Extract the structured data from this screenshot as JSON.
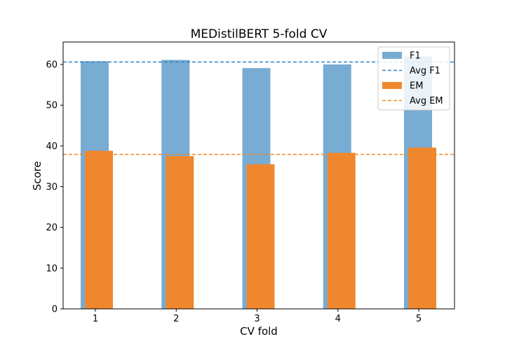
{
  "chart_data": {
    "type": "bar",
    "title": "MEDistilBERT 5-fold CV",
    "xlabel": "CV fold",
    "ylabel": "Score",
    "categories": [
      "1",
      "2",
      "3",
      "4",
      "5"
    ],
    "ylim": [
      0,
      65.5
    ],
    "yticks": [
      0,
      10,
      20,
      30,
      40,
      50,
      60
    ],
    "grid": false,
    "legend_position": "top-right",
    "series": [
      {
        "name": "F1",
        "color": "#78acd3",
        "values": [
          60.8,
          61.1,
          59.1,
          60.0,
          62.0
        ]
      },
      {
        "name": "EM",
        "color": "#ef872e",
        "values": [
          38.8,
          37.5,
          35.5,
          38.3,
          39.6
        ]
      }
    ],
    "reference_lines": [
      {
        "name": "Avg F1",
        "value": 60.6,
        "color": "#2f86c4"
      },
      {
        "name": "Avg EM",
        "value": 37.9,
        "color": "#f28a22"
      }
    ],
    "legend": [
      {
        "label": "F1",
        "kind": "patch",
        "color": "#78acd3"
      },
      {
        "label": "Avg F1",
        "kind": "dashed-line",
        "color": "#2f86c4"
      },
      {
        "label": "EM",
        "kind": "patch",
        "color": "#ef872e"
      },
      {
        "label": "Avg EM",
        "kind": "dashed-line",
        "color": "#f28a22"
      }
    ]
  }
}
